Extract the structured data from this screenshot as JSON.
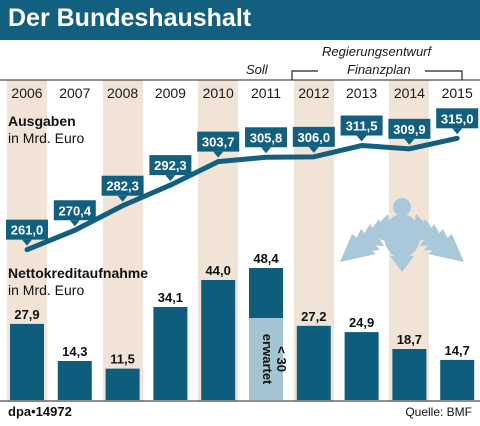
{
  "title": "Der Bundeshaushalt",
  "header_notes": {
    "soll": "Soll",
    "regierungsentwurf": "Regierungsentwurf",
    "finanzplan": "Finanzplan"
  },
  "sections": {
    "ausgaben_title": "Ausgaben",
    "ausgaben_unit": "in Mrd. Euro",
    "kredit_title": "Nettokreditaufnahme",
    "kredit_unit": "in Mrd. Euro"
  },
  "footer": {
    "agency": "dpa•14972",
    "source": "Quelle: BMF"
  },
  "colors": {
    "brand": "#135f7f",
    "bar": "#0f5d7d",
    "bar_light": "#a5c4d2",
    "stripe": "#f1e4d6",
    "eagle": "#a9c8da"
  },
  "icons": [
    "federal-eagle-icon"
  ],
  "chart_data": [
    {
      "type": "line",
      "title": "Ausgaben",
      "ylabel": "in Mrd. Euro",
      "categories": [
        "2006",
        "2007",
        "2008",
        "2009",
        "2010",
        "2011",
        "2012",
        "2013",
        "2014",
        "2015"
      ],
      "values": [
        261.0,
        270.4,
        282.3,
        292.3,
        303.7,
        305.8,
        306.0,
        311.5,
        309.9,
        315.0
      ],
      "labels": [
        "261,0",
        "270,4",
        "282,3",
        "292,3",
        "303,7",
        "305,8",
        "306,0",
        "311,5",
        "309,9",
        "315,0"
      ],
      "ylim": [
        255,
        320
      ]
    },
    {
      "type": "bar",
      "title": "Nettokreditaufnahme",
      "ylabel": "in Mrd. Euro",
      "categories": [
        "2006",
        "2007",
        "2008",
        "2009",
        "2010",
        "2011",
        "2012",
        "2013",
        "2014",
        "2015"
      ],
      "values": [
        27.9,
        14.3,
        11.5,
        34.1,
        44.0,
        48.4,
        27.2,
        24.9,
        18.7,
        14.7
      ],
      "labels": [
        "27,9",
        "14,3",
        "11,5",
        "34,1",
        "44,0",
        "48,4",
        "27,2",
        "24,9",
        "18,7",
        "14,7"
      ],
      "expected_2011": {
        "value": 30,
        "label": "erwartet < 30"
      }
    }
  ]
}
